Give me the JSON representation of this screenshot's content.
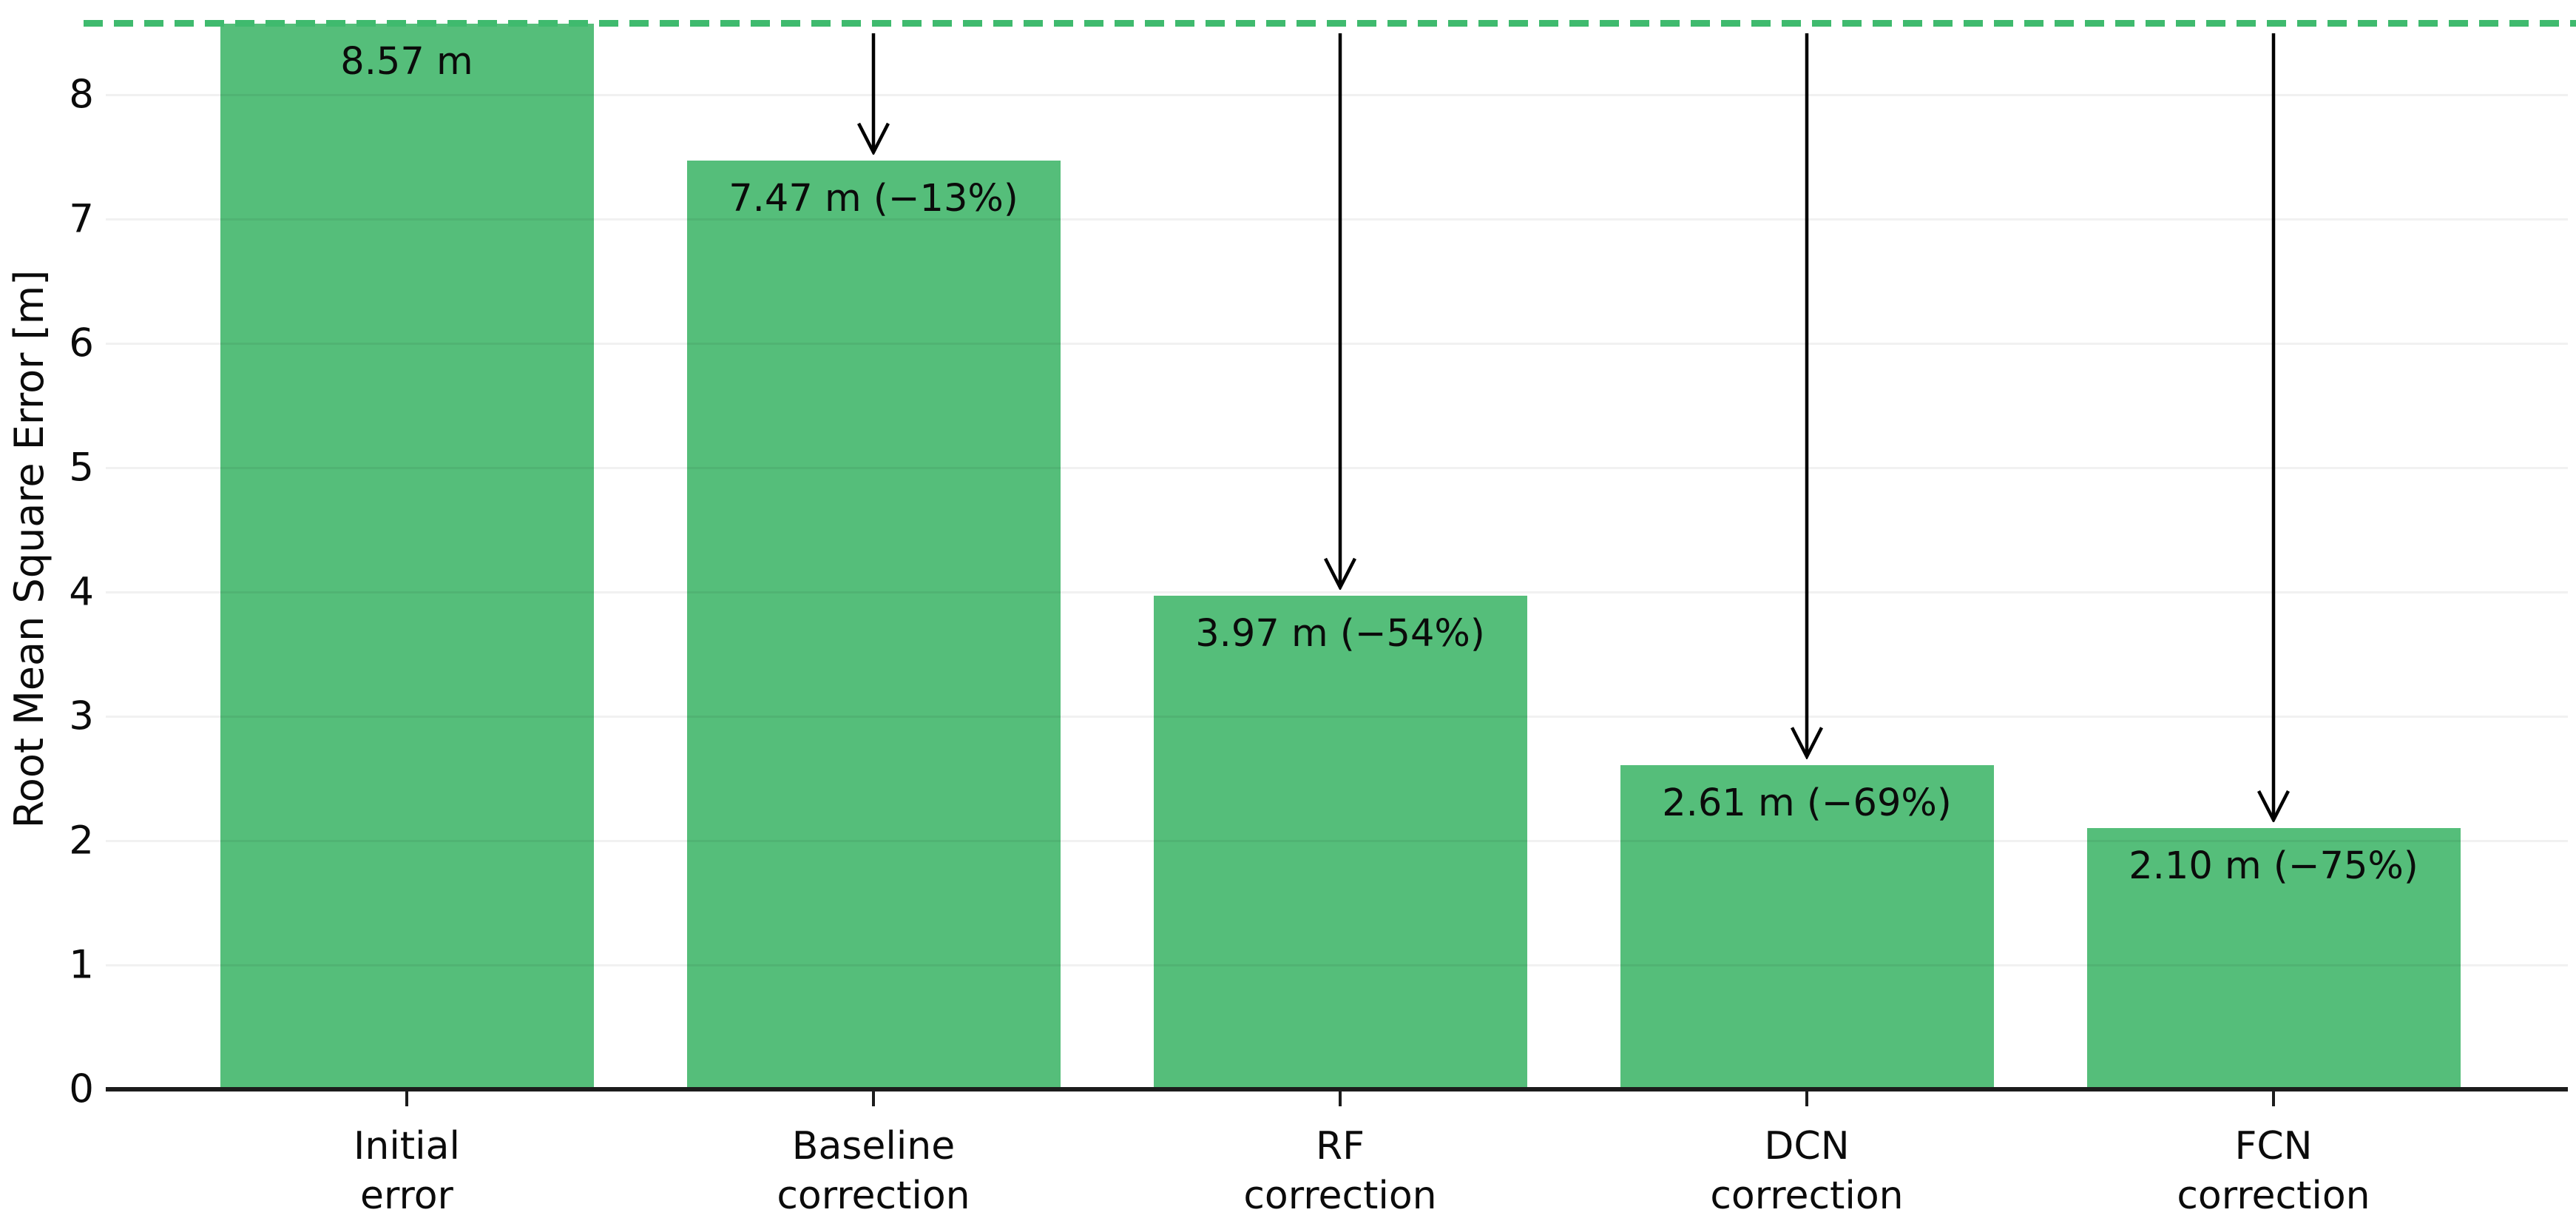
{
  "chart_data": {
    "type": "bar",
    "title": "",
    "xlabel": "",
    "ylabel": "Root Mean Square Error [m]",
    "ylim": [
      0,
      8.76
    ],
    "yticks": [
      0,
      1,
      2,
      3,
      4,
      5,
      6,
      7,
      8
    ],
    "grid": "horizontal light gray lines at each integer tick",
    "legend_position": "none",
    "bar_color": "#55be7a",
    "reference_line": {
      "value": 8.57,
      "style": "dashed",
      "color": "#3fba6e",
      "meaning": "initial error level"
    },
    "categories": [
      "Initial\nerror",
      "Baseline\ncorrection",
      "RF\ncorrection",
      "DCN\ncorrection",
      "FCN\ncorrection"
    ],
    "values": [
      8.57,
      7.47,
      3.97,
      2.61,
      2.1
    ],
    "bar_labels": [
      "8.57 m",
      "7.47 m (−13%)",
      "3.97 m (−54%)",
      "2.61 m (−69%)",
      "2.10 m (−75%)"
    ],
    "arrows_from_reference_line": [
      false,
      true,
      true,
      true,
      true
    ],
    "arrow_color": "#000000"
  }
}
